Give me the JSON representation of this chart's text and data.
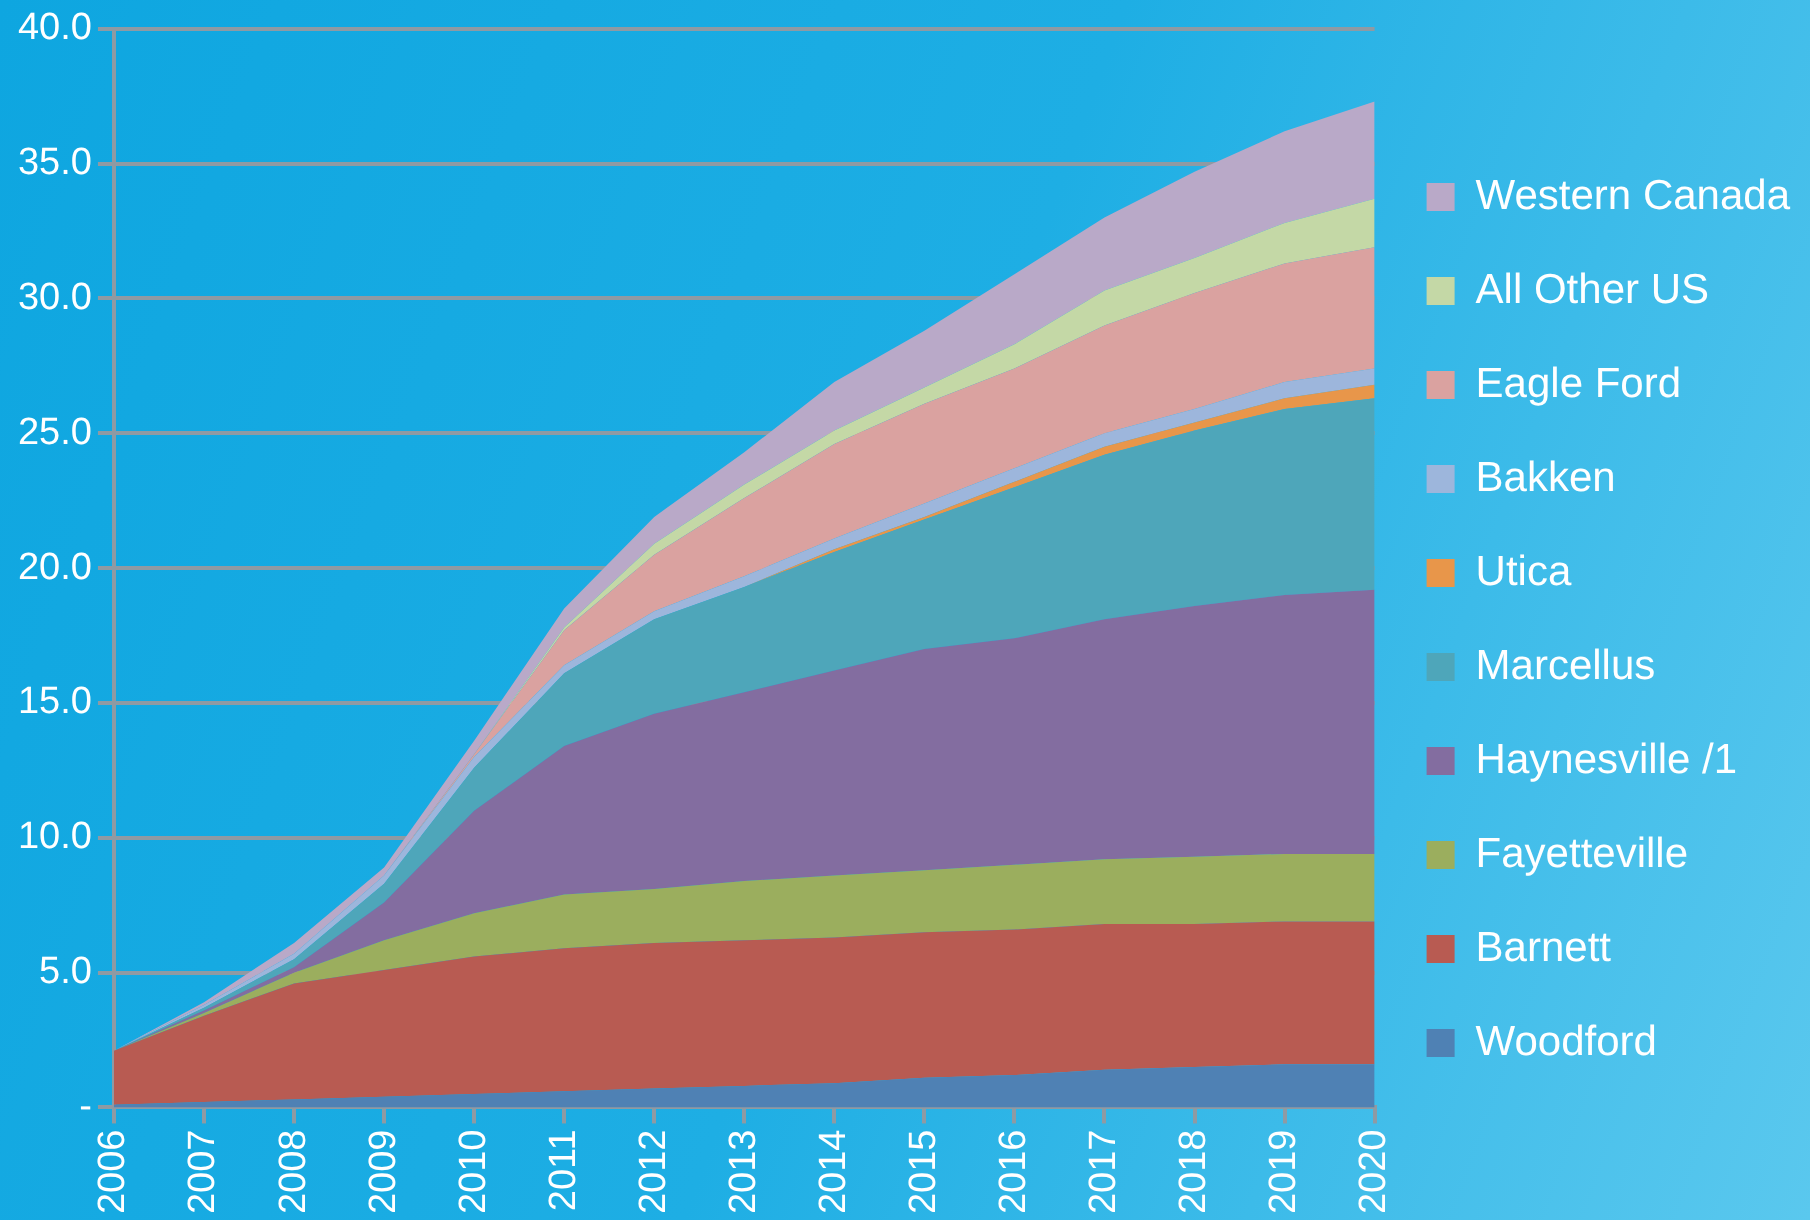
{
  "chart_data": {
    "type": "area",
    "stacked": true,
    "categories": [
      "2006",
      "2007",
      "2008",
      "2009",
      "2010",
      "2011",
      "2012",
      "2013",
      "2014",
      "2015",
      "2016",
      "2017",
      "2018",
      "2019",
      "2020"
    ],
    "ylim": [
      0,
      40
    ],
    "yticks": [
      {
        "value": 0,
        "label": "-"
      },
      {
        "value": 5,
        "label": "5.0"
      },
      {
        "value": 10,
        "label": "10.0"
      },
      {
        "value": 15,
        "label": "15.0"
      },
      {
        "value": 20,
        "label": "20.0"
      },
      {
        "value": 25,
        "label": "25.0"
      },
      {
        "value": 30,
        "label": "30.0"
      },
      {
        "value": 35,
        "label": "35.0"
      },
      {
        "value": 40,
        "label": "40.0"
      }
    ],
    "grid": "y",
    "legend": "right",
    "series": [
      {
        "name": "Woodford",
        "color": "#4f81b4",
        "values": [
          0.1,
          0.2,
          0.3,
          0.4,
          0.5,
          0.6,
          0.7,
          0.8,
          0.9,
          1.1,
          1.2,
          1.4,
          1.5,
          1.6,
          1.6
        ]
      },
      {
        "name": "Barnett",
        "color": "#b85b52",
        "values": [
          2.0,
          3.2,
          4.3,
          4.7,
          5.1,
          5.3,
          5.4,
          5.4,
          5.4,
          5.4,
          5.4,
          5.4,
          5.3,
          5.3,
          5.3
        ]
      },
      {
        "name": "Fayetteville",
        "color": "#9bae5e",
        "values": [
          0,
          0.1,
          0.4,
          1.1,
          1.6,
          2.0,
          2.0,
          2.2,
          2.3,
          2.3,
          2.4,
          2.4,
          2.5,
          2.5,
          2.5
        ]
      },
      {
        "name": "Haynesville /1",
        "color": "#836da0",
        "values": [
          0,
          0.1,
          0.2,
          1.4,
          3.8,
          5.5,
          6.5,
          7.0,
          7.6,
          8.2,
          8.4,
          8.9,
          9.3,
          9.6,
          9.8
        ]
      },
      {
        "name": "Marcellus",
        "color": "#4ea6ba",
        "values": [
          0,
          0.1,
          0.3,
          0.7,
          1.6,
          2.7,
          3.5,
          3.9,
          4.4,
          4.8,
          5.6,
          6.1,
          6.5,
          6.9,
          7.1
        ]
      },
      {
        "name": "Utica",
        "color": "#e8964a",
        "values": [
          0,
          0,
          0,
          0,
          0,
          0,
          0,
          0,
          0.1,
          0.1,
          0.2,
          0.3,
          0.3,
          0.4,
          0.5
        ]
      },
      {
        "name": "Bakken",
        "color": "#9db6dc",
        "values": [
          0,
          0.1,
          0.2,
          0.3,
          0.4,
          0.3,
          0.3,
          0.4,
          0.4,
          0.5,
          0.5,
          0.5,
          0.5,
          0.6,
          0.6
        ]
      },
      {
        "name": "Eagle Ford",
        "color": "#daa2a0",
        "values": [
          0,
          0,
          0,
          0,
          0.1,
          1.3,
          2.1,
          2.9,
          3.5,
          3.7,
          3.7,
          4.0,
          4.3,
          4.4,
          4.5
        ]
      },
      {
        "name": "All Other US",
        "color": "#c4d8a6",
        "values": [
          0,
          0,
          0,
          0,
          0,
          0.1,
          0.4,
          0.5,
          0.5,
          0.6,
          0.9,
          1.3,
          1.3,
          1.5,
          1.8
        ]
      },
      {
        "name": "Western Canada",
        "color": "#b9a9c8",
        "values": [
          0,
          0.1,
          0.4,
          0.3,
          0.5,
          0.7,
          1.0,
          1.2,
          1.8,
          2.1,
          2.6,
          2.7,
          3.2,
          3.4,
          3.6
        ]
      }
    ]
  }
}
